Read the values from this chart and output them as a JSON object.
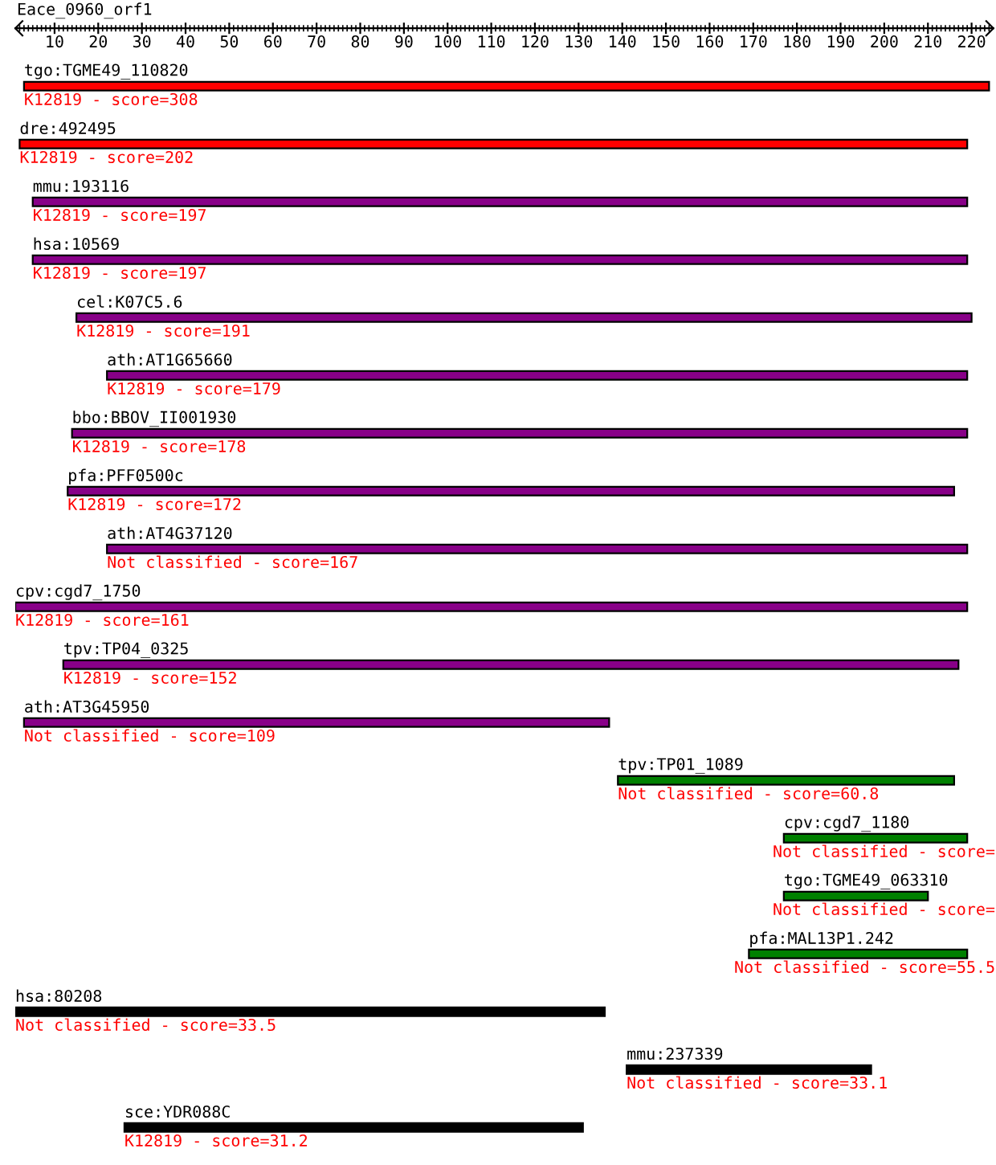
{
  "chart_data": {
    "type": "bar",
    "orientation": "horizontal",
    "title": "Eace_0960_orf1",
    "categories": [
      "tgo:TGME49_110820",
      "dre:492495",
      "mmu:193116",
      "hsa:10569",
      "cel:K07C5.6",
      "ath:AT1G65660",
      "bbo:BBOV_II001930",
      "pfa:PFF0500c",
      "ath:AT4G37120",
      "cpv:cgd7_1750",
      "tpv:TP04_0325",
      "ath:AT3G45950",
      "tpv:TP01_1089",
      "cpv:cgd7_1180",
      "tgo:TGME49_063310",
      "pfa:MAL13P1.242",
      "hsa:80208",
      "mmu:237339",
      "sce:YDR088C"
    ],
    "base": [
      3,
      2,
      5,
      5,
      15,
      22,
      14,
      13,
      22,
      1,
      12,
      3,
      139,
      177,
      177,
      169,
      1,
      141,
      26
    ],
    "values": [
      221,
      217,
      214,
      214,
      205,
      197,
      205,
      203,
      197,
      218,
      205,
      134,
      77,
      42,
      33,
      50,
      135,
      56,
      105
    ],
    "colors": [
      "#ff0000",
      "#ff0000",
      "#880088",
      "#880088",
      "#880088",
      "#880088",
      "#880088",
      "#880088",
      "#880088",
      "#880088",
      "#880088",
      "#880088",
      "#008000",
      "#008000",
      "#008000",
      "#008000",
      "#000000",
      "#000000",
      "#000000"
    ],
    "annotations": [
      "K12819 - score=308",
      "K12819 - score=202",
      "K12819 - score=197",
      "K12819 - score=197",
      "K12819 - score=191",
      "K12819 - score=179",
      "K12819 - score=178",
      "K12819 - score=172",
      "Not classified - score=167",
      "K12819 - score=161",
      "K12819 - score=152",
      "Not classified - score=109",
      "Not classified - score=60.8",
      "Not classified - score=",
      "Not classified - score=",
      "Not classified - score=55.5",
      "Not classified - score=33.5",
      "Not classified - score=33.1",
      "K12819 - score=31.2"
    ],
    "xlim": [
      1,
      225
    ],
    "xticks": [
      {
        "value": 2,
        "label": null
      },
      {
        "value": 3,
        "label": null
      },
      {
        "value": 4,
        "label": null
      },
      {
        "value": 5,
        "label": null
      },
      {
        "value": 6,
        "label": null
      },
      {
        "value": 7,
        "label": null
      },
      {
        "value": 8,
        "label": null
      },
      {
        "value": 9,
        "label": null
      },
      10,
      {
        "value": 11,
        "label": null
      },
      {
        "value": 12,
        "label": null
      },
      {
        "value": 13,
        "label": null
      },
      {
        "value": 14,
        "label": null
      },
      {
        "value": 15,
        "label": null
      },
      {
        "value": 16,
        "label": null
      },
      {
        "value": 17,
        "label": null
      },
      {
        "value": 18,
        "label": null
      },
      {
        "value": 19,
        "label": null
      },
      20,
      {
        "value": 21,
        "label": null
      },
      {
        "value": 22,
        "label": null
      },
      {
        "value": 23,
        "label": null
      },
      {
        "value": 24,
        "label": null
      },
      {
        "value": 25,
        "label": null
      },
      {
        "value": 26,
        "label": null
      },
      {
        "value": 27,
        "label": null
      },
      {
        "value": 28,
        "label": null
      },
      {
        "value": 29,
        "label": null
      },
      30,
      {
        "value": 31,
        "label": null
      },
      {
        "value": 32,
        "label": null
      },
      {
        "value": 33,
        "label": null
      },
      {
        "value": 34,
        "label": null
      },
      {
        "value": 35,
        "label": null
      },
      {
        "value": 36,
        "label": null
      },
      {
        "value": 37,
        "label": null
      },
      {
        "value": 38,
        "label": null
      },
      {
        "value": 39,
        "label": null
      },
      40,
      {
        "value": 41,
        "label": null
      },
      {
        "value": 42,
        "label": null
      },
      {
        "value": 43,
        "label": null
      },
      {
        "value": 44,
        "label": null
      },
      {
        "value": 45,
        "label": null
      },
      {
        "value": 46,
        "label": null
      },
      {
        "value": 47,
        "label": null
      },
      {
        "value": 48,
        "label": null
      },
      {
        "value": 49,
        "label": null
      },
      50,
      {
        "value": 51,
        "label": null
      },
      {
        "value": 52,
        "label": null
      },
      {
        "value": 53,
        "label": null
      },
      {
        "value": 54,
        "label": null
      },
      {
        "value": 55,
        "label": null
      },
      {
        "value": 56,
        "label": null
      },
      {
        "value": 57,
        "label": null
      },
      {
        "value": 58,
        "label": null
      },
      {
        "value": 59,
        "label": null
      },
      60,
      {
        "value": 61,
        "label": null
      },
      {
        "value": 62,
        "label": null
      },
      {
        "value": 63,
        "label": null
      },
      {
        "value": 64,
        "label": null
      },
      {
        "value": 65,
        "label": null
      },
      {
        "value": 66,
        "label": null
      },
      {
        "value": 67,
        "label": null
      },
      {
        "value": 68,
        "label": null
      },
      {
        "value": 69,
        "label": null
      },
      70,
      {
        "value": 71,
        "label": null
      },
      {
        "value": 72,
        "label": null
      },
      {
        "value": 73,
        "label": null
      },
      {
        "value": 74,
        "label": null
      },
      {
        "value": 75,
        "label": null
      },
      {
        "value": 76,
        "label": null
      },
      {
        "value": 77,
        "label": null
      },
      {
        "value": 78,
        "label": null
      },
      {
        "value": 79,
        "label": null
      },
      80,
      {
        "value": 81,
        "label": null
      },
      {
        "value": 82,
        "label": null
      },
      {
        "value": 83,
        "label": null
      },
      {
        "value": 84,
        "label": null
      },
      {
        "value": 85,
        "label": null
      },
      {
        "value": 86,
        "label": null
      },
      {
        "value": 87,
        "label": null
      },
      {
        "value": 88,
        "label": null
      },
      {
        "value": 89,
        "label": null
      },
      90,
      {
        "value": 91,
        "label": null
      },
      {
        "value": 92,
        "label": null
      },
      {
        "value": 93,
        "label": null
      },
      {
        "value": 94,
        "label": null
      },
      {
        "value": 95,
        "label": null
      },
      {
        "value": 96,
        "label": null
      },
      {
        "value": 97,
        "label": null
      },
      {
        "value": 98,
        "label": null
      },
      {
        "value": 99,
        "label": null
      },
      100,
      {
        "value": 101,
        "label": null
      },
      {
        "value": 102,
        "label": null
      },
      {
        "value": 103,
        "label": null
      },
      {
        "value": 104,
        "label": null
      },
      {
        "value": 105,
        "label": null
      },
      {
        "value": 106,
        "label": null
      },
      {
        "value": 107,
        "label": null
      },
      {
        "value": 108,
        "label": null
      },
      {
        "value": 109,
        "label": null
      },
      110,
      {
        "value": 111,
        "label": null
      },
      {
        "value": 112,
        "label": null
      },
      {
        "value": 113,
        "label": null
      },
      {
        "value": 114,
        "label": null
      },
      {
        "value": 115,
        "label": null
      },
      {
        "value": 116,
        "label": null
      },
      {
        "value": 117,
        "label": null
      },
      {
        "value": 118,
        "label": null
      },
      {
        "value": 119,
        "label": null
      },
      120,
      {
        "value": 121,
        "label": null
      },
      {
        "value": 122,
        "label": null
      },
      {
        "value": 123,
        "label": null
      },
      {
        "value": 124,
        "label": null
      },
      {
        "value": 125,
        "label": null
      },
      {
        "value": 126,
        "label": null
      },
      {
        "value": 127,
        "label": null
      },
      {
        "value": 128,
        "label": null
      },
      {
        "value": 129,
        "label": null
      },
      130,
      {
        "value": 131,
        "label": null
      },
      {
        "value": 132,
        "label": null
      },
      {
        "value": 133,
        "label": null
      },
      {
        "value": 134,
        "label": null
      },
      {
        "value": 135,
        "label": null
      },
      {
        "value": 136,
        "label": null
      },
      {
        "value": 137,
        "label": null
      },
      {
        "value": 138,
        "label": null
      },
      {
        "value": 139,
        "label": null
      },
      140,
      {
        "value": 141,
        "label": null
      },
      {
        "value": 142,
        "label": null
      },
      {
        "value": 143,
        "label": null
      },
      {
        "value": 144,
        "label": null
      },
      {
        "value": 145,
        "label": null
      },
      {
        "value": 146,
        "label": null
      },
      {
        "value": 147,
        "label": null
      },
      {
        "value": 148,
        "label": null
      },
      {
        "value": 149,
        "label": null
      },
      150,
      {
        "value": 151,
        "label": null
      },
      {
        "value": 152,
        "label": null
      },
      {
        "value": 153,
        "label": null
      },
      {
        "value": 154,
        "label": null
      },
      {
        "value": 155,
        "label": null
      },
      {
        "value": 156,
        "label": null
      },
      {
        "value": 157,
        "label": null
      },
      {
        "value": 158,
        "label": null
      },
      {
        "value": 159,
        "label": null
      },
      160,
      {
        "value": 161,
        "label": null
      },
      {
        "value": 162,
        "label": null
      },
      {
        "value": 163,
        "label": null
      },
      {
        "value": 164,
        "label": null
      },
      {
        "value": 165,
        "label": null
      },
      {
        "value": 166,
        "label": null
      },
      {
        "value": 167,
        "label": null
      },
      {
        "value": 168,
        "label": null
      },
      {
        "value": 169,
        "label": null
      },
      170,
      {
        "value": 171,
        "label": null
      },
      {
        "value": 172,
        "label": null
      },
      {
        "value": 173,
        "label": null
      },
      {
        "value": 174,
        "label": null
      },
      {
        "value": 175,
        "label": null
      },
      {
        "value": 176,
        "label": null
      },
      {
        "value": 177,
        "label": null
      },
      {
        "value": 178,
        "label": null
      },
      {
        "value": 179,
        "label": null
      },
      180,
      {
        "value": 181,
        "label": null
      },
      {
        "value": 182,
        "label": null
      },
      {
        "value": 183,
        "label": null
      },
      {
        "value": 184,
        "label": null
      },
      {
        "value": 185,
        "label": null
      },
      {
        "value": 186,
        "label": null
      },
      {
        "value": 187,
        "label": null
      },
      {
        "value": 188,
        "label": null
      },
      {
        "value": 189,
        "label": null
      },
      190,
      {
        "value": 191,
        "label": null
      },
      {
        "value": 192,
        "label": null
      },
      {
        "value": 193,
        "label": null
      },
      {
        "value": 194,
        "label": null
      },
      {
        "value": 195,
        "label": null
      },
      {
        "value": 196,
        "label": null
      },
      {
        "value": 197,
        "label": null
      },
      {
        "value": 198,
        "label": null
      },
      {
        "value": 199,
        "label": null
      },
      200,
      {
        "value": 201,
        "label": null
      },
      {
        "value": 202,
        "label": null
      },
      {
        "value": 203,
        "label": null
      },
      {
        "value": 204,
        "label": null
      },
      {
        "value": 205,
        "label": null
      },
      {
        "value": 206,
        "label": null
      },
      {
        "value": 207,
        "label": null
      },
      {
        "value": 208,
        "label": null
      },
      {
        "value": 209,
        "label": null
      },
      210,
      {
        "value": 211,
        "label": null
      },
      {
        "value": 212,
        "label": null
      },
      {
        "value": 213,
        "label": null
      },
      {
        "value": 214,
        "label": null
      },
      {
        "value": 215,
        "label": null
      },
      {
        "value": 216,
        "label": null
      },
      {
        "value": 217,
        "label": null
      },
      {
        "value": 218,
        "label": null
      },
      {
        "value": 219,
        "label": null
      },
      220,
      {
        "value": 221,
        "label": null
      },
      {
        "value": 222,
        "label": null
      },
      {
        "value": 223,
        "label": null
      },
      {
        "value": 224,
        "label": null
      }
    ]
  }
}
